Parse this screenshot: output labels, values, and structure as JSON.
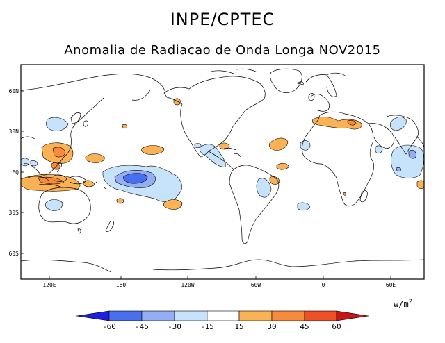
{
  "title": "INPE/CPTEC",
  "subtitle": "Anomalia de Radiacao de Onda Longa NOV2015",
  "lat_labels": [
    "60N",
    "30N",
    "EQ",
    "30S",
    "60S"
  ],
  "lon_labels": [
    "120E",
    "180",
    "120W",
    "60W",
    "0",
    "60E"
  ],
  "units_base": "w/m",
  "units_exp": "2",
  "colorbar": {
    "labels": [
      "-60",
      "-45",
      "-30",
      "-15",
      "15",
      "30",
      "45",
      "60"
    ],
    "colors": [
      "#1f1fe0",
      "#4a6ef0",
      "#93aef5",
      "#c6e3fb",
      "#ffffff",
      "#fbb254",
      "#f88a3c",
      "#ef5024",
      "#c81414"
    ]
  },
  "anomaly_colors": {
    "weak_negative": "#c6e3fb",
    "moderate_negative": "#93aef5",
    "strong_negative": "#4a6ef0",
    "weak_positive": "#fbb254",
    "moderate_positive": "#f88a3c",
    "strong_positive": "#ef5024"
  }
}
